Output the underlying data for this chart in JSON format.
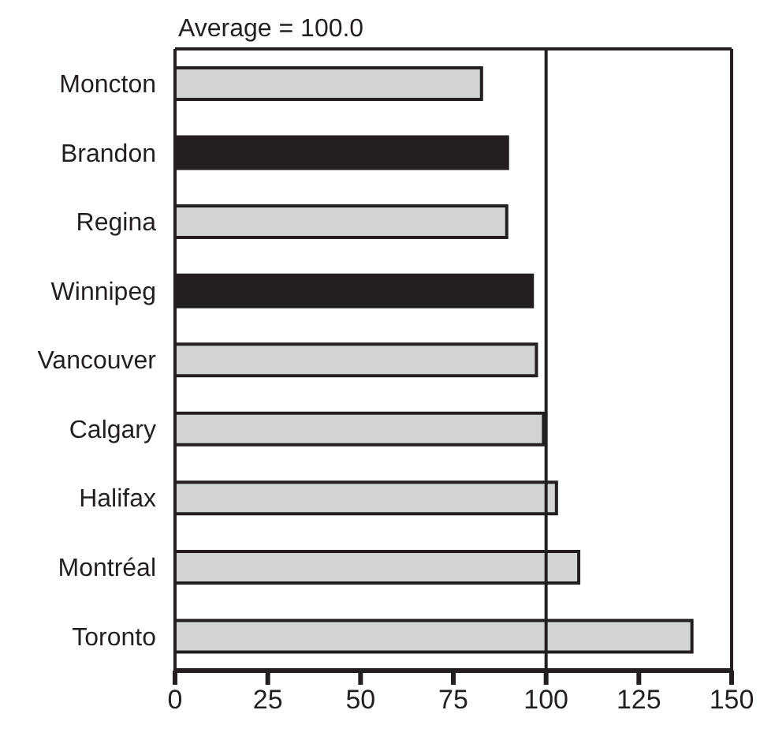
{
  "chart_data": {
    "type": "bar",
    "orientation": "horizontal",
    "categories": [
      "Moncton",
      "Brandon",
      "Regina",
      "Winnipeg",
      "Vancouver",
      "Calgary",
      "Halifax",
      "Montréal",
      "Toronto"
    ],
    "values": [
      82.6,
      89.6,
      89.4,
      96.3,
      97.4,
      99.3,
      102.8,
      108.8,
      139.3
    ],
    "colors": [
      "#d1d3d4",
      "#231f20",
      "#d1d3d4",
      "#231f20",
      "#d1d3d4",
      "#d1d3d4",
      "#d1d3d4",
      "#d1d3d4",
      "#d1d3d4"
    ],
    "xlim": [
      0,
      150
    ],
    "xticks": [
      0,
      25,
      50,
      75,
      100,
      125,
      150
    ],
    "ref_lines": [
      {
        "axis": "x",
        "value": 100,
        "label": "Average = 100.0",
        "color": "#231f20"
      }
    ]
  }
}
